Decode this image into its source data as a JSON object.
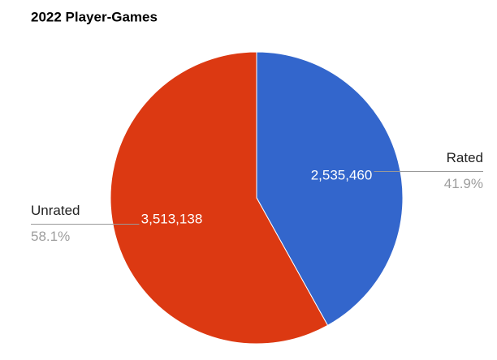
{
  "chart_data": {
    "type": "pie",
    "title": "2022 Player-Games",
    "categories": [
      "Rated",
      "Unrated"
    ],
    "values": [
      2535460,
      3513138
    ],
    "value_labels": [
      "2,535,460",
      "3,513,138"
    ],
    "percents": [
      41.9,
      58.1
    ],
    "percent_labels": [
      "41.9%",
      "58.1%"
    ],
    "colors": [
      "#3366cc",
      "#dc3912"
    ]
  }
}
